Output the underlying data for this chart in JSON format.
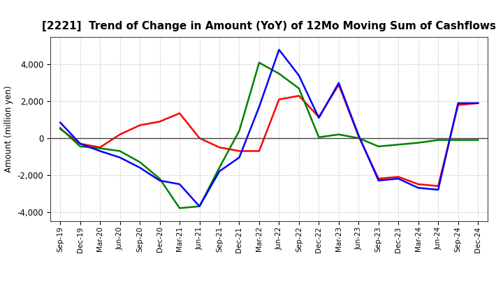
{
  "title": "[2221]  Trend of Change in Amount (YoY) of 12Mo Moving Sum of Cashflows",
  "ylabel": "Amount (million yen)",
  "x_labels": [
    "Sep-19",
    "Dec-19",
    "Mar-20",
    "Jun-20",
    "Sep-20",
    "Dec-20",
    "Mar-21",
    "Jun-21",
    "Sep-21",
    "Dec-21",
    "Mar-22",
    "Jun-22",
    "Sep-22",
    "Dec-22",
    "Mar-23",
    "Jun-23",
    "Sep-23",
    "Dec-23",
    "Mar-24",
    "Jun-24",
    "Sep-24",
    "Dec-24"
  ],
  "operating": [
    500,
    -300,
    -500,
    200,
    700,
    900,
    1350,
    0,
    -500,
    -700,
    -700,
    2100,
    2300,
    1150,
    2900,
    100,
    -2200,
    -2100,
    -2500,
    -2600,
    1800,
    1900
  ],
  "investing": [
    550,
    -450,
    -550,
    -700,
    -1300,
    -2200,
    -3800,
    -3700,
    -1600,
    400,
    4100,
    3500,
    2700,
    50,
    200,
    0,
    -450,
    -350,
    -250,
    -100,
    -100,
    -100
  ],
  "free": [
    850,
    -300,
    -700,
    -1050,
    -1600,
    -2300,
    -2500,
    -3700,
    -1800,
    -1050,
    1700,
    4800,
    3400,
    1100,
    3000,
    150,
    -2300,
    -2200,
    -2700,
    -2800,
    1900,
    1900
  ],
  "operating_color": "#ff0000",
  "investing_color": "#008000",
  "free_color": "#0000ff",
  "ylim": [
    -4500,
    5500
  ],
  "yticks": [
    -4000,
    -2000,
    0,
    2000,
    4000
  ],
  "bg_color": "#ffffff",
  "grid_color": "#bbbbbb",
  "title_fontsize": 11
}
